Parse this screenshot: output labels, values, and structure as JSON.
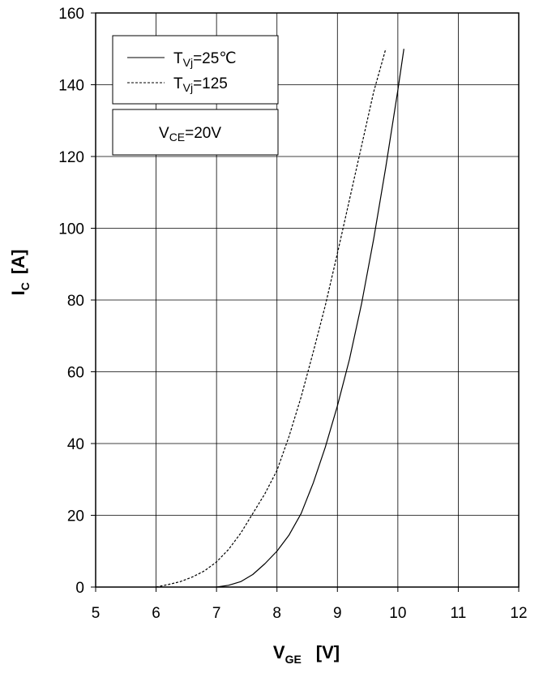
{
  "chart_data": {
    "type": "line",
    "xlabel": {
      "main": "V",
      "sub": "GE",
      "unit": "[V]"
    },
    "ylabel": {
      "main": "I",
      "sub": "C",
      "unit": "[A]"
    },
    "xlim": [
      5,
      12
    ],
    "ylim": [
      0,
      160
    ],
    "xticks": [
      "5",
      "6",
      "7",
      "8",
      "9",
      "10",
      "11",
      "12"
    ],
    "yticks": [
      "0",
      "20",
      "40",
      "60",
      "80",
      "100",
      "120",
      "140",
      "160"
    ],
    "grid": true,
    "legend_position": "top-left",
    "series": [
      {
        "name": "T_Vj=25℃",
        "legend": {
          "main": "T",
          "sub": "Vj",
          "rest": "=25℃"
        },
        "style": "solid",
        "color": "#000000",
        "x": [
          7.0,
          7.2,
          7.4,
          7.6,
          7.8,
          8.0,
          8.2,
          8.4,
          8.6,
          8.8,
          9.0,
          9.2,
          9.4,
          9.6,
          9.8,
          10.0,
          10.1
        ],
        "y": [
          0.0,
          0.5,
          1.5,
          3.5,
          6.5,
          10.0,
          14.5,
          20.5,
          29.0,
          39.0,
          50.5,
          63.5,
          79.0,
          97.0,
          117.0,
          138.5,
          150.0
        ]
      },
      {
        "name": "T_Vj=125",
        "legend": {
          "main": "T",
          "sub": "Vj",
          "rest": "=125"
        },
        "style": "dashed",
        "color": "#000000",
        "x": [
          6.0,
          6.2,
          6.4,
          6.6,
          6.8,
          7.0,
          7.2,
          7.4,
          7.6,
          7.8,
          8.0,
          8.2,
          8.4,
          8.6,
          8.8,
          9.0,
          9.2,
          9.4,
          9.6,
          9.8
        ],
        "y": [
          0.0,
          0.7,
          1.5,
          2.8,
          4.5,
          7.0,
          10.5,
          15.0,
          20.5,
          26.0,
          32.5,
          42.0,
          53.0,
          65.5,
          78.5,
          93.0,
          108.0,
          123.0,
          138.0,
          150.0
        ]
      }
    ],
    "annotation": {
      "main": "V",
      "sub": "CE",
      "rest": "=20V"
    }
  }
}
